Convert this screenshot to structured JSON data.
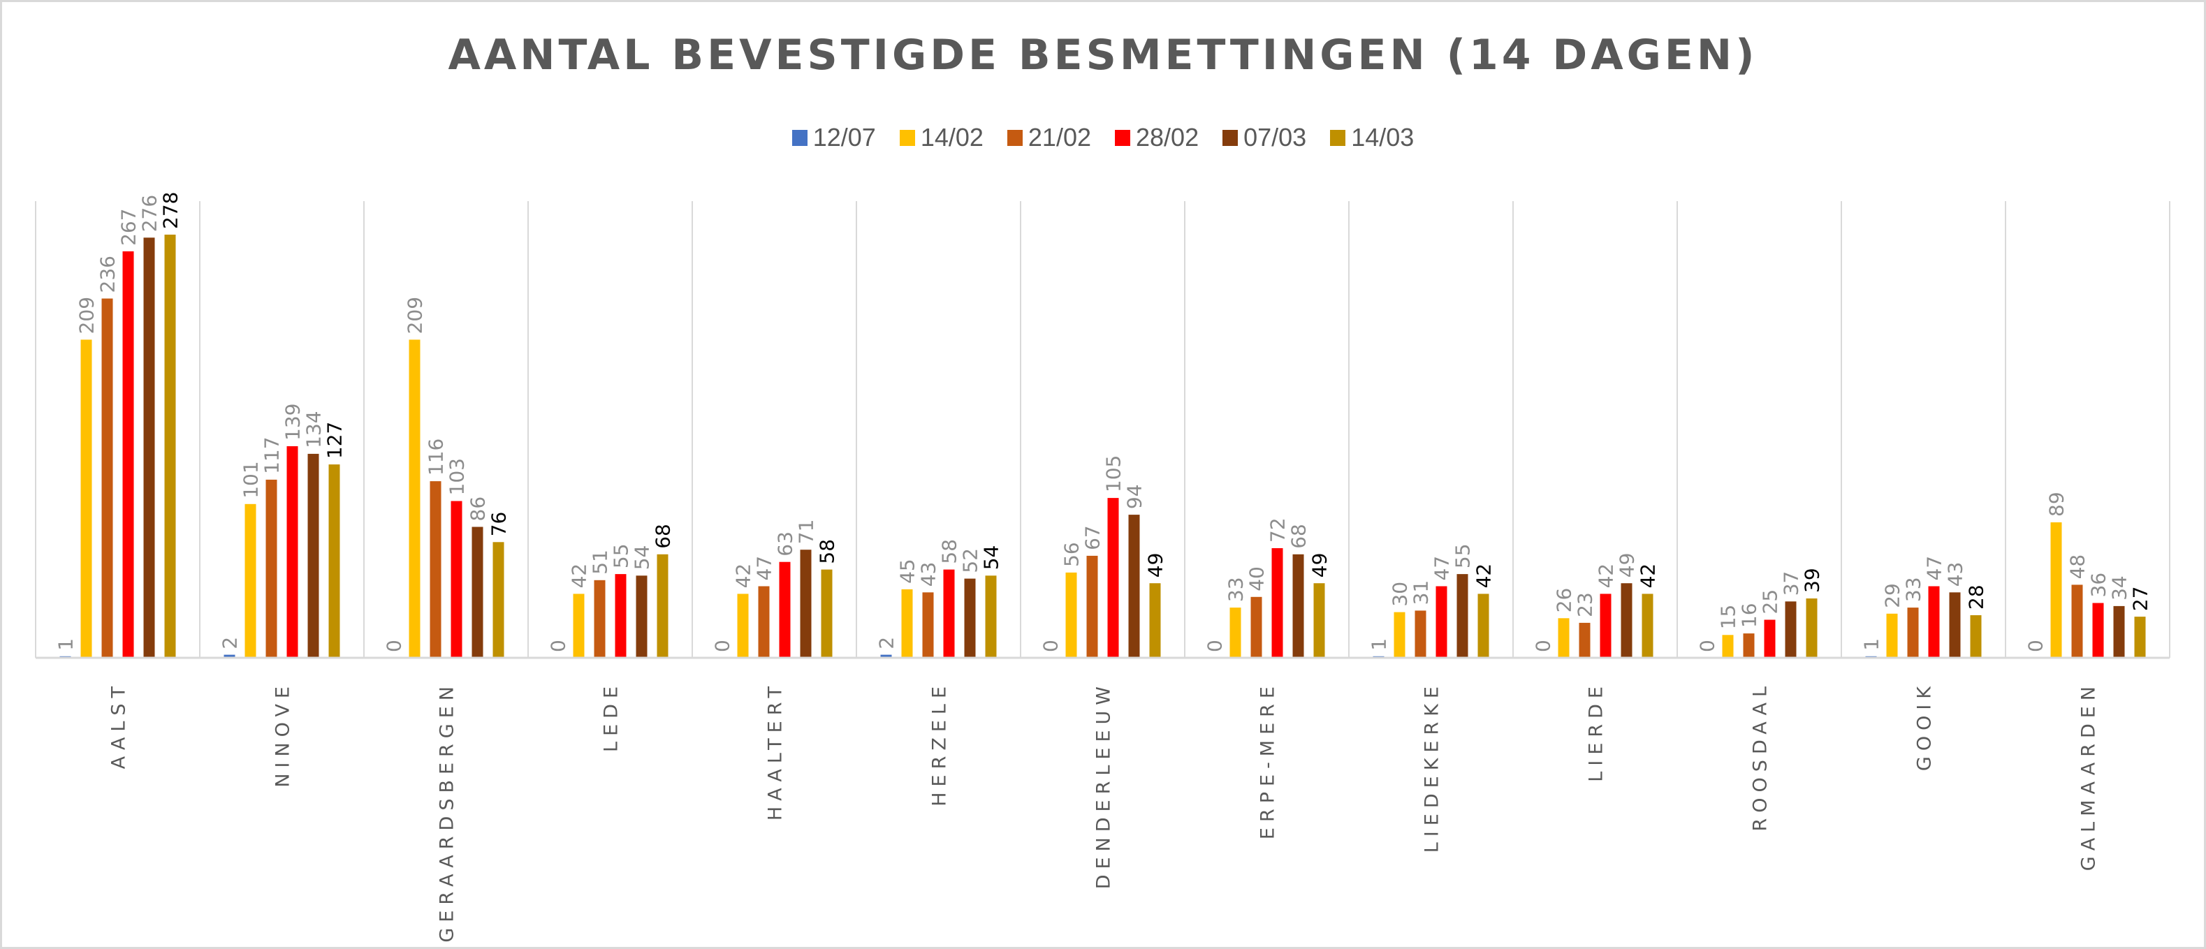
{
  "chart_data": {
    "type": "bar",
    "title": "AANTAL BEVESTIGDE BESMETTINGEN (14 DAGEN)",
    "xlabel": "",
    "ylabel": "",
    "ylim": [
      0,
      300
    ],
    "grid": "vertical category separators",
    "legend_position": "top",
    "categories": [
      "AALST",
      "NINOVE",
      "GERAARDSBERGEN",
      "LEDE",
      "HAALTERT",
      "HERZELE",
      "DENDERLEEUW",
      "ERPE-MERE",
      "LIEDEKERKE",
      "LIERDE",
      "ROOSDAAL",
      "GOOIK",
      "GALMAARDEN"
    ],
    "series": [
      {
        "name": "12/07",
        "color": "#4472C4",
        "values": [
          1,
          2,
          0,
          0,
          0,
          2,
          0,
          0,
          1,
          0,
          0,
          1,
          0
        ]
      },
      {
        "name": "14/02",
        "color": "#FFC000",
        "values": [
          209,
          101,
          209,
          42,
          42,
          45,
          56,
          33,
          30,
          26,
          15,
          29,
          89
        ]
      },
      {
        "name": "21/02",
        "color": "#C55A11",
        "values": [
          236,
          117,
          116,
          51,
          47,
          43,
          67,
          40,
          31,
          23,
          16,
          33,
          48
        ]
      },
      {
        "name": "28/02",
        "color": "#FF0000",
        "values": [
          267,
          139,
          103,
          55,
          63,
          58,
          105,
          72,
          47,
          42,
          25,
          47,
          36
        ]
      },
      {
        "name": "07/03",
        "color": "#843C0C",
        "values": [
          276,
          134,
          86,
          54,
          71,
          52,
          94,
          68,
          55,
          49,
          37,
          43,
          34
        ]
      },
      {
        "name": "14/03",
        "color": "#BF9000",
        "values": [
          278,
          127,
          76,
          68,
          58,
          54,
          49,
          49,
          42,
          42,
          39,
          28,
          27
        ]
      }
    ]
  }
}
